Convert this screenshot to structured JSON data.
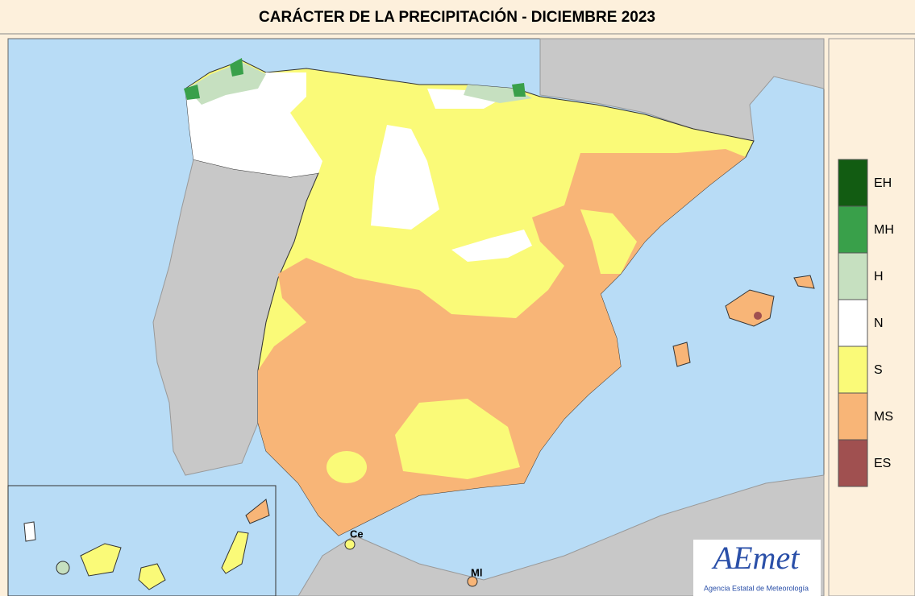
{
  "title": "CARÁCTER DE LA PRECIPITACIÓN - DICIEMBRE  2023",
  "legend": [
    {
      "label": "EH",
      "color": "#125c12"
    },
    {
      "label": "MH",
      "color": "#39a04a"
    },
    {
      "label": "H",
      "color": "#c6e0c0"
    },
    {
      "label": "N",
      "color": "#ffffff"
    },
    {
      "label": "S",
      "color": "#fafa78"
    },
    {
      "label": "MS",
      "color": "#f8b577"
    },
    {
      "label": "ES",
      "color": "#a05050"
    }
  ],
  "places": [
    {
      "label": "Ce"
    },
    {
      "label": "Ml"
    }
  ],
  "logo": {
    "name": "AEmet",
    "subtitle": "Agencia Estatal de Meteorología"
  }
}
